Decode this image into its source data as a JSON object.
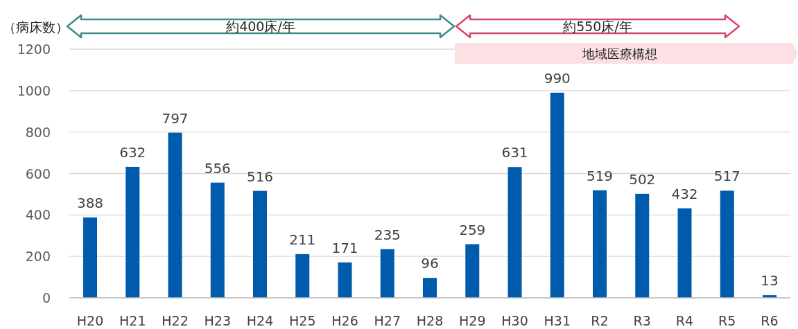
{
  "chart_data": {
    "type": "bar",
    "ylabel": "（病床数）",
    "categories": [
      "H20",
      "H21",
      "H22",
      "H23",
      "H24",
      "H25",
      "H26",
      "H27",
      "H28",
      "H29",
      "H30",
      "H31",
      "R2",
      "R3",
      "R4",
      "R5",
      "R6"
    ],
    "values": [
      388,
      632,
      797,
      556,
      516,
      211,
      171,
      235,
      96,
      259,
      631,
      990,
      519,
      502,
      432,
      517,
      13
    ],
    "color": "#005bac",
    "ylim": [
      0,
      1200
    ],
    "yticks": [
      0,
      200,
      400,
      600,
      800,
      1000,
      1200
    ],
    "grid": "y",
    "data_labels": true,
    "annotations": [
      "約400床/年",
      "約550床/年",
      "地域医療構想"
    ]
  }
}
